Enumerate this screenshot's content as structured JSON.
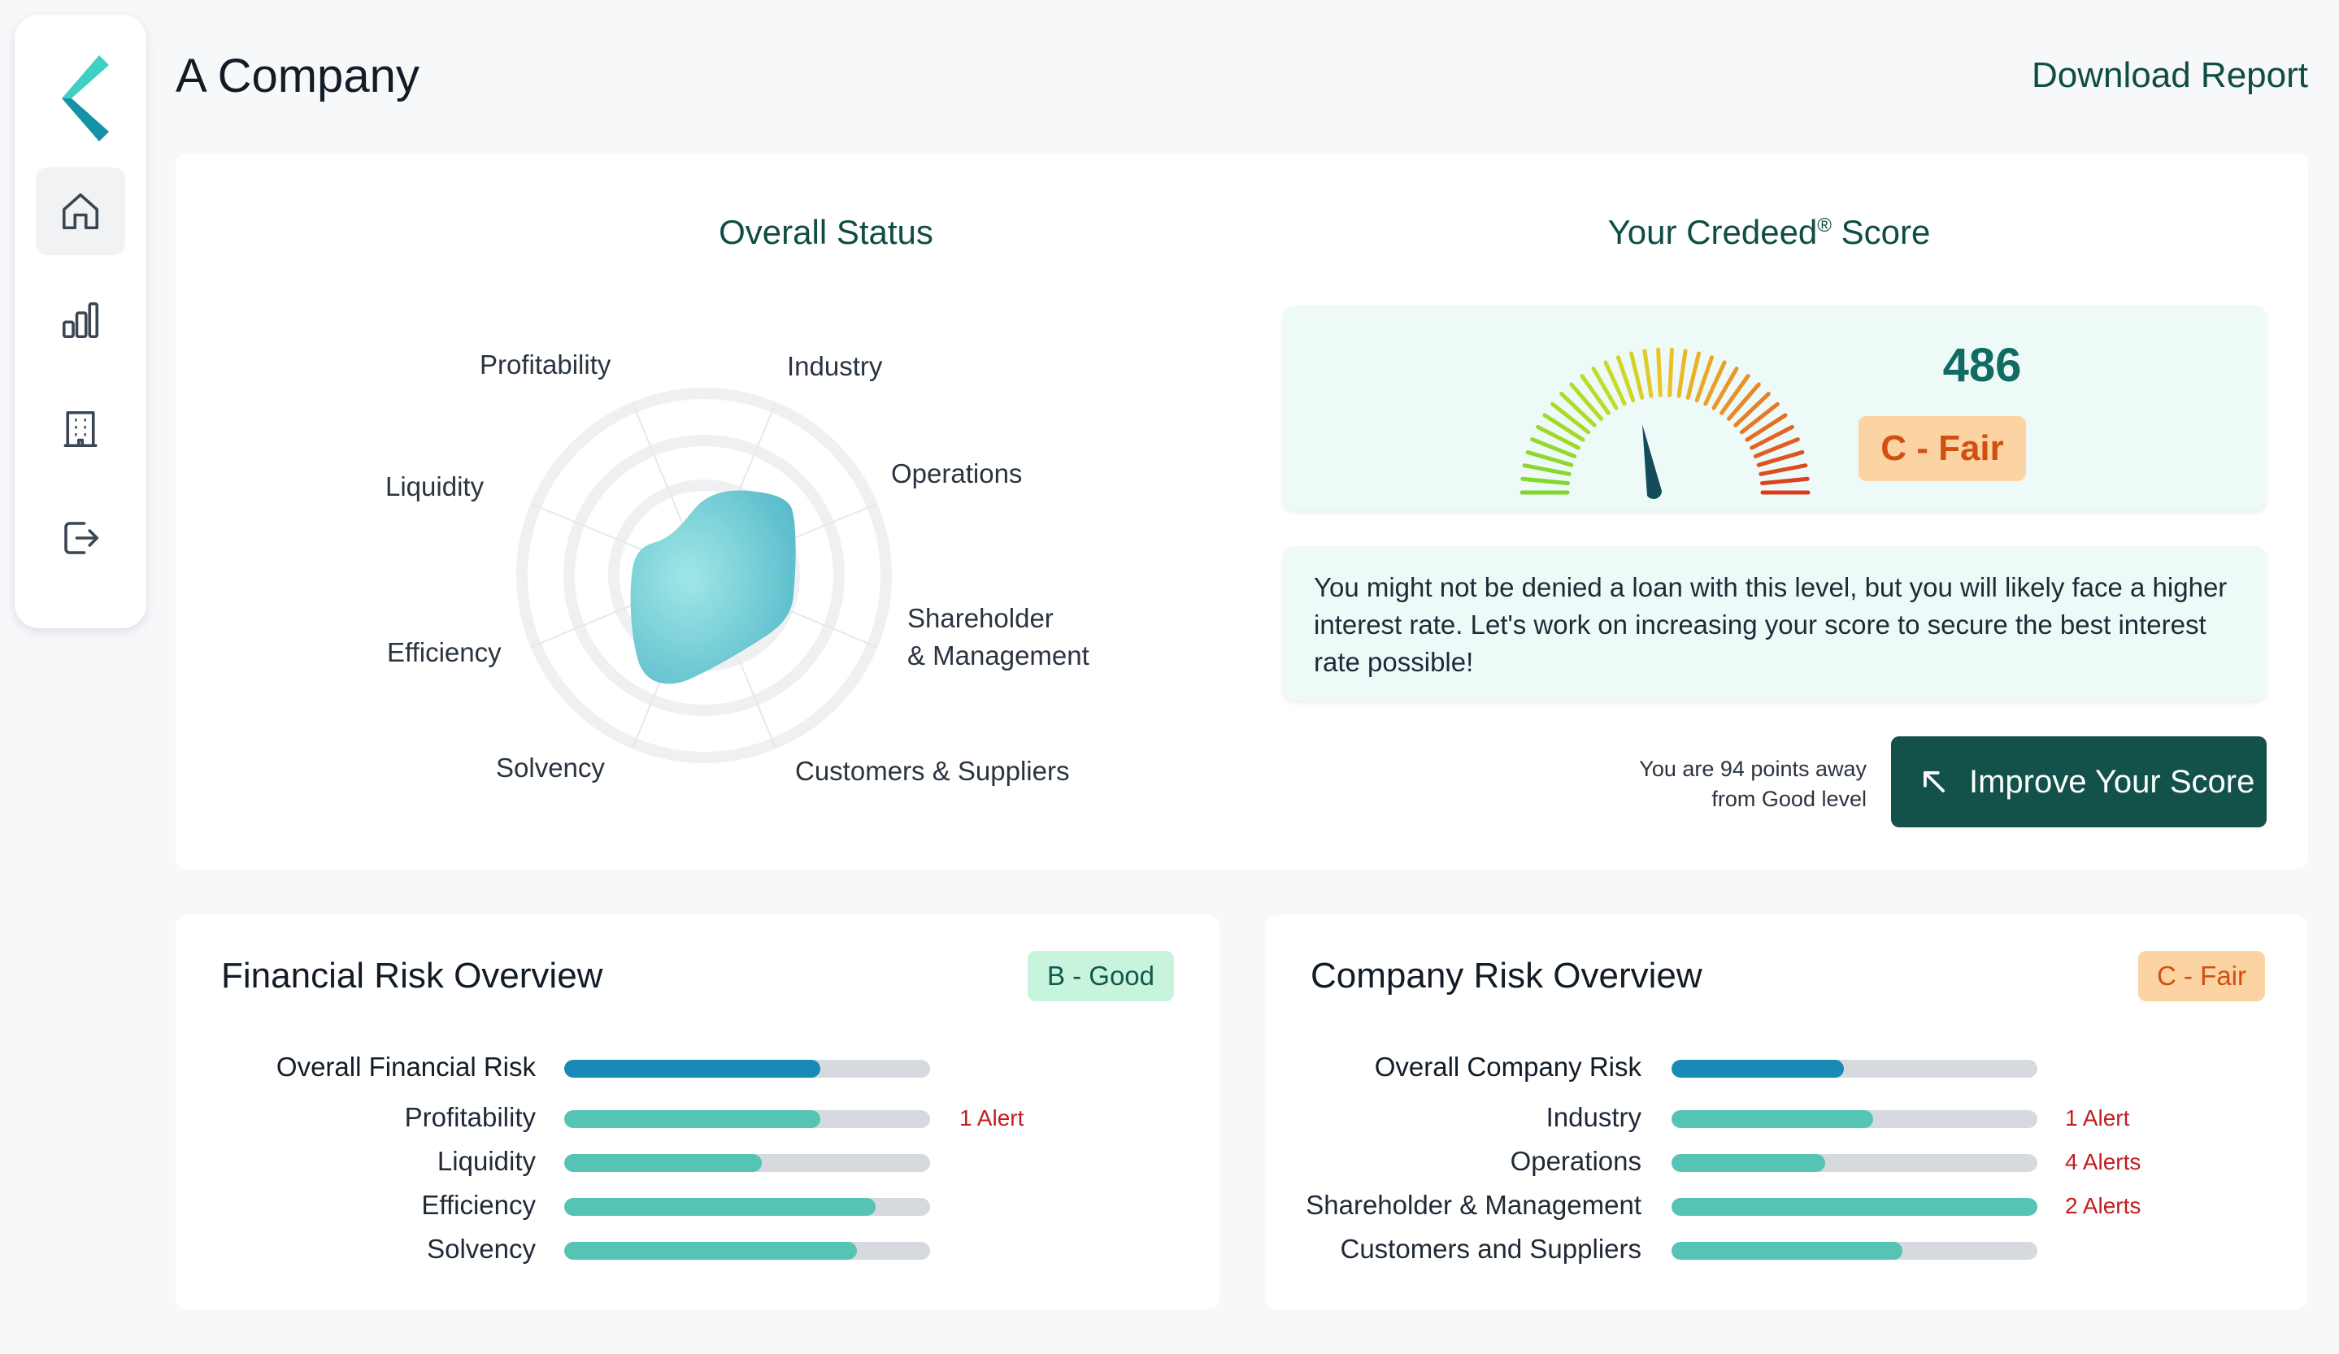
{
  "header": {
    "title": "A Company",
    "download_label": "Download Report"
  },
  "sidebar": {
    "items": [
      {
        "icon": "home-icon",
        "active": true
      },
      {
        "icon": "bar-chart-icon",
        "active": false
      },
      {
        "icon": "building-icon",
        "active": false
      },
      {
        "icon": "logout-icon",
        "active": false
      }
    ]
  },
  "overall_status": {
    "title": "Overall Status",
    "axes": [
      {
        "label": "Industry"
      },
      {
        "label": "Operations"
      },
      {
        "label": "Shareholder\n& Management"
      },
      {
        "label": "Customers & Suppliers"
      },
      {
        "label": "Solvency"
      },
      {
        "label": "Efficiency"
      },
      {
        "label": "Liquidity"
      },
      {
        "label": "Profitability"
      }
    ]
  },
  "score": {
    "title_main": "Your Credeed",
    "title_mark": "®",
    "title_suffix": " Score",
    "value": "486",
    "grade": "C - Fair",
    "advice": "You might not be denied a loan with this level, but you will likely face a higher interest rate. Let's work on increasing your score to secure the best interest rate possible!",
    "points_away_line1": "You are 94 points away",
    "points_away_line2": "from Good level",
    "improve_label": "Improve Your Score"
  },
  "financial_risk": {
    "title": "Financial Risk Overview",
    "grade": "B - Good",
    "rows": [
      {
        "label": "Overall Financial Risk",
        "value": 0.7,
        "primary": true,
        "alert": ""
      },
      {
        "label": "Profitability",
        "value": 0.7,
        "primary": false,
        "alert": "1 Alert"
      },
      {
        "label": "Liquidity",
        "value": 0.54,
        "primary": false,
        "alert": ""
      },
      {
        "label": "Efficiency",
        "value": 0.85,
        "primary": false,
        "alert": ""
      },
      {
        "label": "Solvency",
        "value": 0.8,
        "primary": false,
        "alert": ""
      }
    ]
  },
  "company_risk": {
    "title": "Company Risk Overview",
    "grade": "C - Fair",
    "rows": [
      {
        "label": "Overall Company Risk",
        "value": 0.47,
        "primary": true,
        "alert": ""
      },
      {
        "label": "Industry",
        "value": 0.55,
        "primary": false,
        "alert": "1 Alert"
      },
      {
        "label": "Operations",
        "value": 0.42,
        "primary": false,
        "alert": "4 Alerts"
      },
      {
        "label": "Shareholder & Management",
        "value": 1.0,
        "primary": false,
        "alert": "2 Alerts"
      },
      {
        "label": "Customers and Suppliers",
        "value": 0.63,
        "primary": false,
        "alert": ""
      }
    ]
  },
  "colors": {
    "brand_dark": "#12524a",
    "accent_teal": "#56c4b5",
    "primary_bar": "#1989b5",
    "fair": "#d24f12",
    "alert": "#c21d1d"
  }
}
